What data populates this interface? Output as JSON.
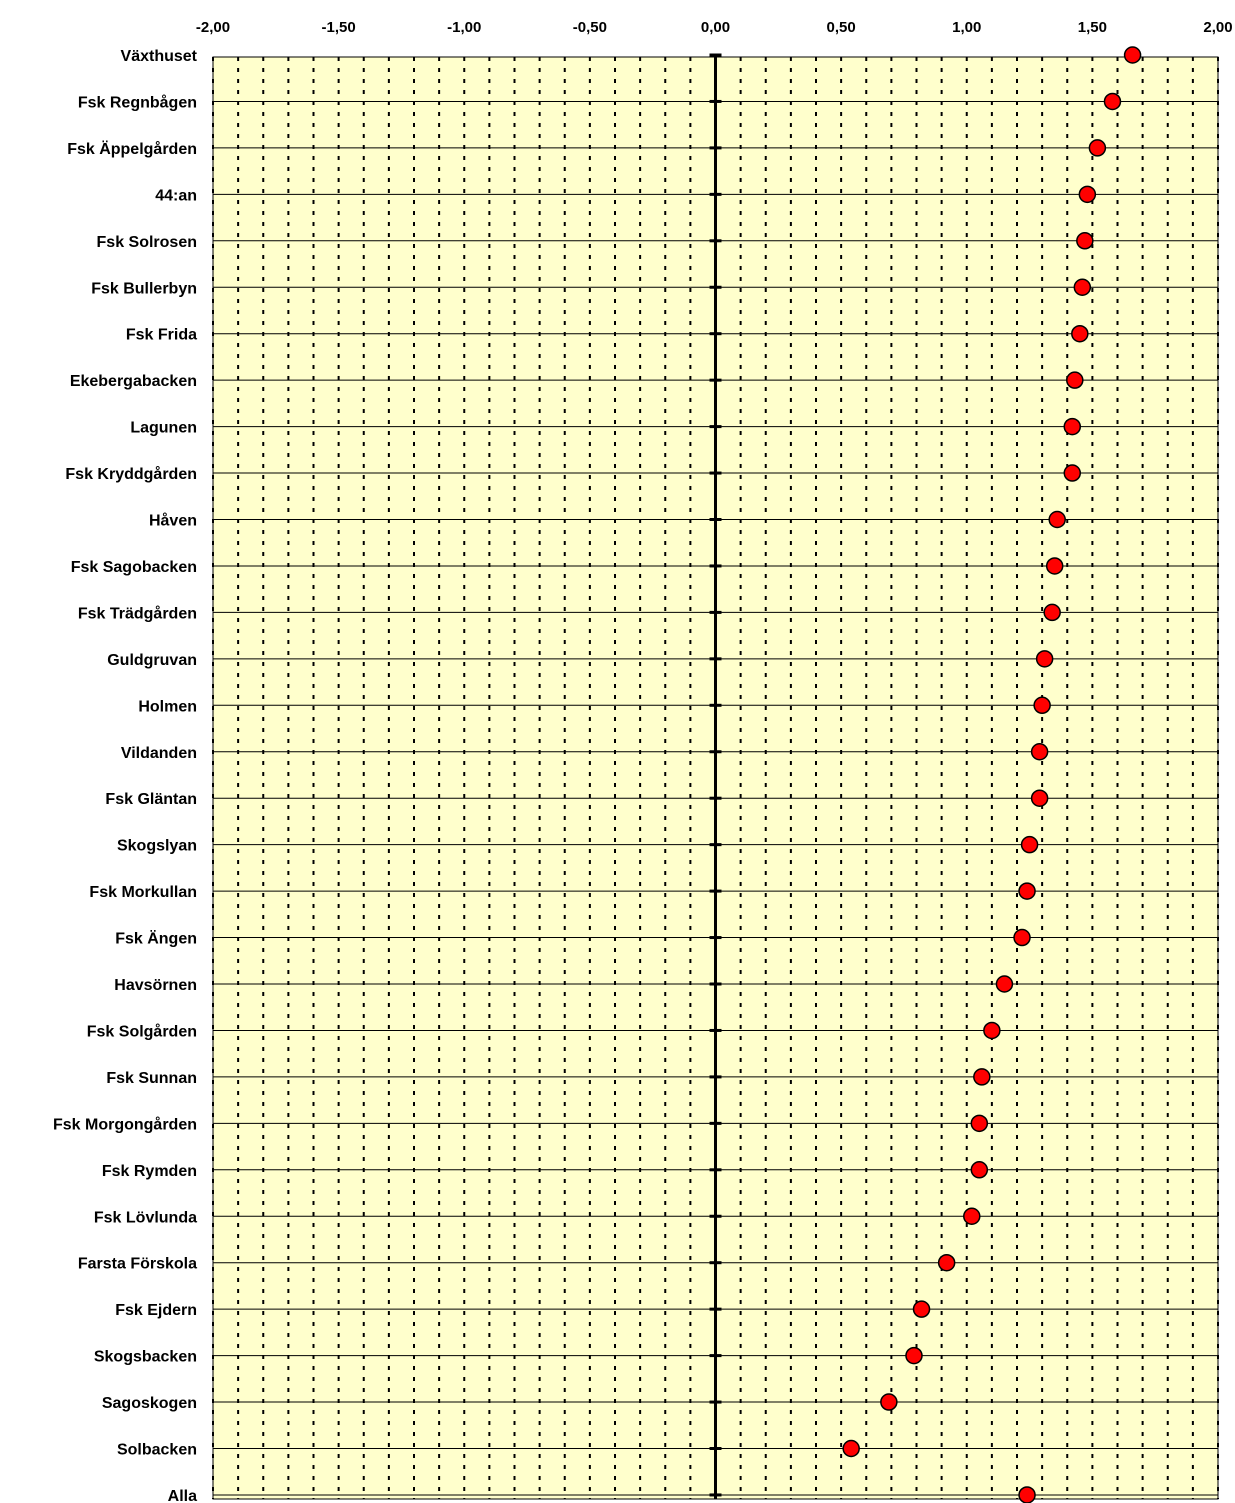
{
  "chart_data": {
    "type": "scatter",
    "orientation": "horizontal",
    "title": "",
    "xlabel": "",
    "ylabel": "",
    "xlim": [
      -2.0,
      2.0
    ],
    "x_ticks": [
      "-2,00",
      "-1,50",
      "-1,00",
      "-0,50",
      "0,00",
      "0,50",
      "1,00",
      "1,50",
      "2,00"
    ],
    "x_tick_values": [
      -2.0,
      -1.5,
      -1.0,
      -0.5,
      0.0,
      0.5,
      1.0,
      1.5,
      2.0
    ],
    "x_axis_position": "top",
    "grid": true,
    "legend": "none",
    "categories": [
      "Växthuset",
      "Fsk Regnbågen",
      "Fsk Äppelgården",
      "44:an",
      "Fsk Solrosen",
      "Fsk Bullerbyn",
      "Fsk Frida",
      "Ekebergabacken",
      "Lagunen",
      "Fsk Kryddgården",
      "Håven",
      "Fsk Sagobacken",
      "Fsk Trädgården",
      "Guldgruvan",
      "Holmen",
      "Vildanden",
      "Fsk Gläntan",
      "Skogslyan",
      "Fsk Morkullan",
      "Fsk Ängen",
      "Havsörnen",
      "Fsk Solgården",
      "Fsk Sunnan",
      "Fsk Morgongården",
      "Fsk Rymden",
      "Fsk Lövlunda",
      "Farsta Förskola",
      "Fsk Ejdern",
      "Skogsbacken",
      "Sagoskogen",
      "Solbacken",
      "Alla"
    ],
    "values": [
      1.66,
      1.58,
      1.52,
      1.48,
      1.47,
      1.46,
      1.45,
      1.43,
      1.42,
      1.42,
      1.36,
      1.35,
      1.34,
      1.31,
      1.3,
      1.29,
      1.29,
      1.25,
      1.24,
      1.22,
      1.15,
      1.1,
      1.06,
      1.05,
      1.05,
      1.02,
      0.92,
      0.82,
      0.79,
      0.69,
      0.54,
      1.24
    ],
    "colors": {
      "plot_background": "#FFFFCC",
      "marker_fill": "#FF0000",
      "marker_stroke": "#000000",
      "gridline": "#000000"
    }
  }
}
